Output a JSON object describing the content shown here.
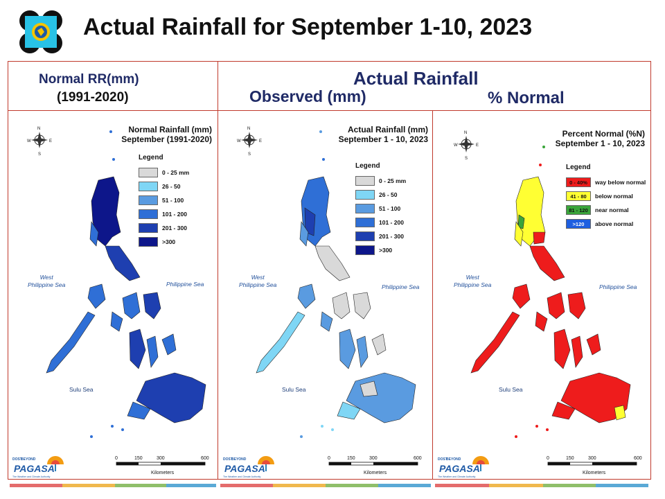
{
  "header": {
    "title": "Actual Rainfall for September 1-10, 2023",
    "normal_heading": "Normal RR(mm)",
    "normal_period": "(1991-2020)",
    "actual_heading": "Actual Rainfall",
    "observed_heading": "Observed (mm)",
    "percent_heading": "% Normal"
  },
  "colors": {
    "frame": "#c0392b",
    "heading_text": "#1f2a66",
    "rain_0_25": "#d9d9d9",
    "rain_26_50": "#7fd6f5",
    "rain_51_100": "#5a9be0",
    "rain_101_200": "#2f6fd6",
    "rain_201_300": "#1e3fb0",
    "rain_gt300": "#0d168a",
    "pn_way_below": "#ee1c1c",
    "pn_below": "#ffff33",
    "pn_near": "#3aa53a",
    "pn_above": "#1e5fe0"
  },
  "panels": [
    {
      "title_line1": "Normal Rainfall (mm)",
      "title_line2": "September (1991-2020)",
      "legend_title": "Legend",
      "legend": [
        "0 - 25 mm",
        "26 - 50",
        "51 - 100",
        "101 - 200",
        "201 - 300",
        ">300"
      ],
      "sea_west": [
        "West",
        "Philippine Sea"
      ],
      "sea_east": "Philippine Sea",
      "sea_sulu": "Sulu Sea",
      "scale_ticks": [
        "0",
        "150",
        "300",
        "600"
      ],
      "scale_unit": "Kilometers"
    },
    {
      "title_line1": "Actual Rainfall (mm)",
      "title_line2": "September 1 - 10, 2023",
      "legend_title": "Legend",
      "legend": [
        "0 - 25 mm",
        "26 - 50",
        "51 - 100",
        "101 - 200",
        "201 - 300",
        ">300"
      ],
      "sea_west": [
        "West",
        "Philippine Sea"
      ],
      "sea_east": "Philippine Sea",
      "sea_sulu": "Sulu Sea",
      "scale_ticks": [
        "0",
        "150",
        "300",
        "600"
      ],
      "scale_unit": "Kilometers"
    },
    {
      "title_line1": "Percent Normal (%N)",
      "title_line2": "September 1 - 10, 2023",
      "legend_title": "Legend",
      "legend": [
        {
          "range": "0 - 40%",
          "label": "way below normal"
        },
        {
          "range": "41 - 80",
          "label": "below normal"
        },
        {
          "range": "81 - 120",
          "label": "near normal"
        },
        {
          "range": ">120",
          "label": "above normal"
        }
      ],
      "sea_west": [
        "West",
        "Philippine Sea"
      ],
      "sea_east": "Philippine Sea",
      "sea_sulu": "Sulu Sea",
      "scale_ticks": [
        "0",
        "150",
        "300",
        "600"
      ],
      "scale_unit": "Kilometers"
    }
  ],
  "branding": {
    "logo_text": "PAGASA",
    "logo_sub": "The Weather and Climate Authority",
    "logo_pre": "DOST",
    "logo_tag": "BEYOND",
    "compass": [
      "N",
      "W",
      "E",
      "S"
    ]
  }
}
